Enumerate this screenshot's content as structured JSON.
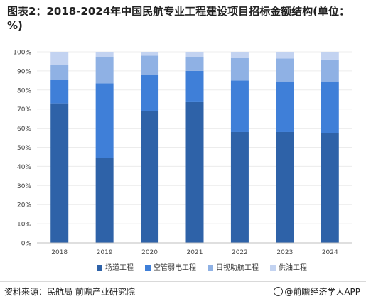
{
  "title": "图表2：2018-2024年中国民航专业工程建设项目招标金额结构(单位：%)",
  "source": "资料来源：民航局 前瞻产业研究院",
  "brand": "@前瞻经济学人APP",
  "chart_data": {
    "type": "bar",
    "stacked": true,
    "categories": [
      "2018",
      "2019",
      "2020",
      "2021",
      "2022",
      "2023",
      "2024"
    ],
    "ylim": [
      0,
      100
    ],
    "yticks": [
      "0%",
      "10%",
      "20%",
      "30%",
      "40%",
      "50%",
      "60%",
      "70%",
      "80%",
      "90%",
      "100%"
    ],
    "legend_position": "bottom",
    "series": [
      {
        "name": "场道工程",
        "color": "#2e62a8",
        "values": [
          73,
          44.5,
          69,
          74,
          58,
          58,
          57.5
        ]
      },
      {
        "name": "空管弱电工程",
        "color": "#3f7fd8",
        "values": [
          12.5,
          39,
          19,
          16,
          27,
          26.5,
          27
        ]
      },
      {
        "name": "目视助航工程",
        "color": "#8fb1e4",
        "values": [
          7.5,
          14,
          10,
          7.5,
          12,
          12,
          11.5
        ]
      },
      {
        "name": "供油工程",
        "color": "#c3d3f1",
        "values": [
          7,
          2.5,
          2,
          2.5,
          3,
          3.5,
          4
        ]
      }
    ]
  }
}
